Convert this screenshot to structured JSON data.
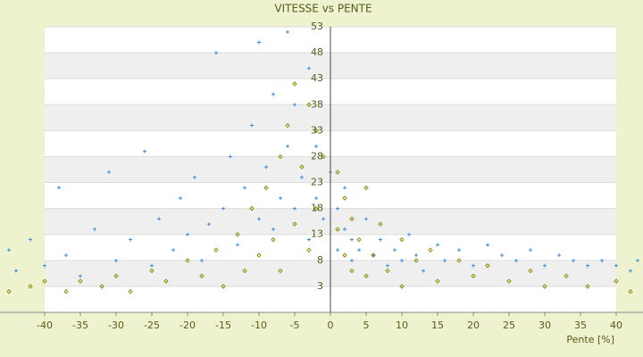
{
  "chart_data": {
    "type": "scatter",
    "title": "VITESSE vs PENTE",
    "x_label": "Pente [%]",
    "xlim": [
      -46.25,
      43.75
    ],
    "xticks": [
      -40,
      -35,
      -30,
      -25,
      -20,
      -15,
      -10,
      -5,
      0,
      5,
      10,
      15,
      20,
      25,
      30,
      35,
      40
    ],
    "ylim": [
      -2,
      53
    ],
    "yticks": [
      53,
      48,
      43,
      38,
      33,
      28,
      23,
      18,
      13,
      8,
      3
    ],
    "grid": true,
    "series": [
      {
        "color": "#3b8fd9",
        "marker": "plus",
        "x": [
          -45,
          -44,
          -42,
          -40,
          -38,
          -37,
          -35,
          -33,
          -31,
          -30,
          -28,
          -26,
          -25,
          -24,
          -22,
          -21,
          -20,
          -19,
          -18,
          -17,
          -16,
          -15,
          -14,
          -13,
          -12,
          -11,
          -10,
          -10,
          -9,
          -8,
          -8,
          -7,
          -6,
          -6,
          -5,
          -5,
          -4,
          -3,
          -3,
          -2,
          -2,
          -1,
          0,
          1,
          1,
          2,
          2,
          3,
          3,
          4,
          5,
          6,
          7,
          8,
          9,
          10,
          11,
          12,
          13,
          15,
          16,
          18,
          20,
          22,
          24,
          26,
          28,
          30,
          32,
          34,
          36,
          38,
          40,
          42,
          43
        ],
        "values": [
          10,
          6,
          12,
          7,
          22,
          9,
          5,
          14,
          25,
          8,
          12,
          29,
          7,
          16,
          10,
          20,
          13,
          24,
          8,
          15,
          48,
          18,
          28,
          11,
          22,
          34,
          16,
          50,
          26,
          40,
          14,
          20,
          52,
          30,
          18,
          38,
          24,
          45,
          12,
          30,
          20,
          16,
          25,
          18,
          10,
          14,
          22,
          12,
          8,
          10,
          16,
          9,
          12,
          7,
          10,
          8,
          13,
          9,
          6,
          11,
          8,
          10,
          7,
          11,
          9,
          8,
          10,
          7,
          9,
          8,
          7,
          8,
          7,
          6,
          8
        ]
      },
      {
        "color": "#8c8c00",
        "marker": "diamond",
        "x": [
          -45,
          -42,
          -40,
          -37,
          -35,
          -32,
          -30,
          -28,
          -25,
          -23,
          -20,
          -18,
          -16,
          -15,
          -13,
          -12,
          -11,
          -10,
          -9,
          -8,
          -7,
          -7,
          -6,
          -5,
          -5,
          -4,
          -3,
          -3,
          -2,
          -2,
          -1,
          1,
          1,
          2,
          2,
          3,
          3,
          4,
          5,
          5,
          6,
          7,
          8,
          10,
          10,
          12,
          14,
          15,
          18,
          20,
          22,
          25,
          28,
          30,
          33,
          36,
          40,
          42
        ],
        "values": [
          2,
          3,
          4,
          2,
          4,
          3,
          5,
          2,
          6,
          4,
          8,
          5,
          10,
          3,
          13,
          6,
          18,
          9,
          22,
          12,
          28,
          6,
          34,
          15,
          42,
          26,
          38,
          10,
          33,
          18,
          28,
          25,
          14,
          20,
          9,
          16,
          6,
          12,
          22,
          5,
          9,
          15,
          6,
          12,
          3,
          8,
          10,
          4,
          8,
          5,
          7,
          4,
          6,
          3,
          5,
          3,
          4,
          2
        ]
      }
    ]
  }
}
